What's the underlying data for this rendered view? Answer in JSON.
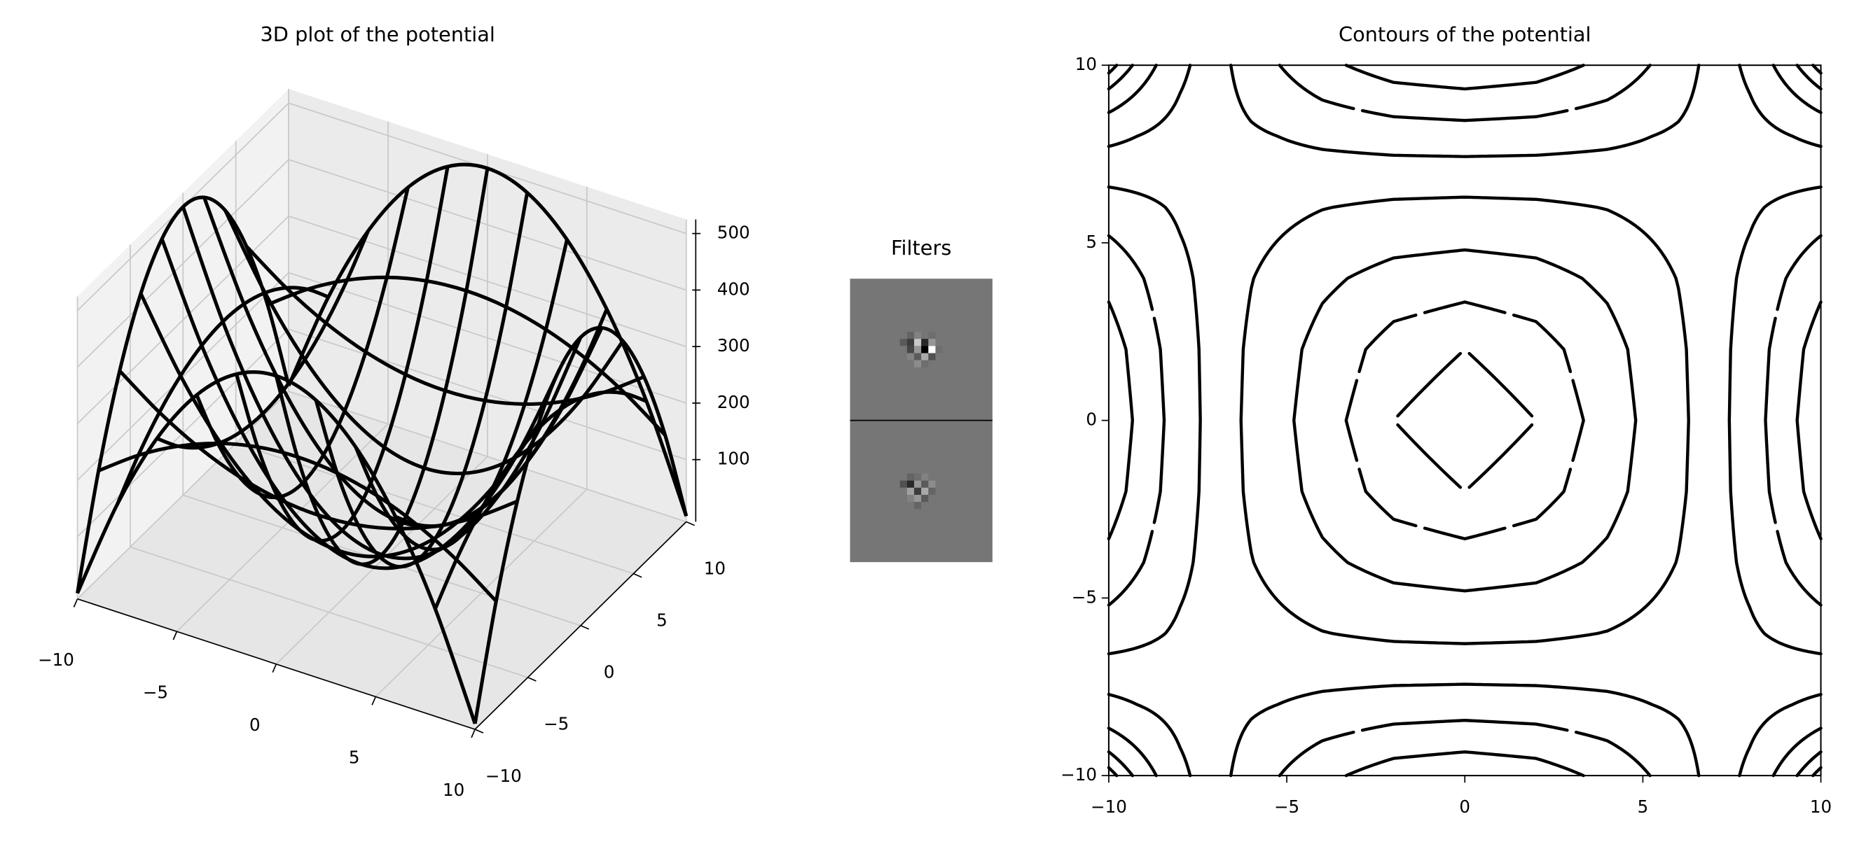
{
  "chart_data": [
    {
      "type": "wireframe",
      "title": "3D plot of the potential",
      "color": "#000000",
      "x": [
        -10,
        -8,
        -6,
        -4,
        -2,
        0,
        2,
        4,
        6,
        8,
        10
      ],
      "y": [
        -10,
        -8,
        -6,
        -4,
        -2,
        0,
        2,
        4,
        6,
        8,
        10
      ],
      "z": [
        [
          0,
          180,
          320,
          420,
          480,
          500,
          480,
          420,
          320,
          180,
          0
        ],
        [
          180,
          230.4,
          269.6,
          297.6,
          314.4,
          320,
          314.4,
          297.6,
          269.6,
          230.4,
          180
        ],
        [
          320,
          269.6,
          230.4,
          202.4,
          185.6,
          180,
          185.6,
          202.4,
          230.4,
          269.6,
          320
        ],
        [
          420,
          297.6,
          202.4,
          134.4,
          93.6,
          80,
          93.6,
          134.4,
          202.4,
          297.6,
          420
        ],
        [
          480,
          314.4,
          185.6,
          93.6,
          38.4,
          20,
          38.4,
          93.6,
          185.6,
          314.4,
          480
        ],
        [
          500,
          320,
          180,
          80,
          20,
          0,
          20,
          80,
          180,
          320,
          500
        ],
        [
          480,
          314.4,
          185.6,
          93.6,
          38.4,
          20,
          38.4,
          93.6,
          185.6,
          314.4,
          480
        ],
        [
          420,
          297.6,
          202.4,
          134.4,
          93.6,
          80,
          93.6,
          134.4,
          202.4,
          297.6,
          420
        ],
        [
          320,
          269.6,
          230.4,
          202.4,
          185.6,
          180,
          185.6,
          202.4,
          230.4,
          269.6,
          320
        ],
        [
          180,
          230.4,
          269.6,
          297.6,
          314.4,
          320,
          314.4,
          297.6,
          269.6,
          230.4,
          180
        ],
        [
          0,
          180,
          320,
          420,
          480,
          500,
          480,
          420,
          320,
          180,
          0
        ]
      ],
      "xlim": [
        -10,
        10
      ],
      "ylim": [
        -10,
        10
      ],
      "zlim": [
        -10,
        525
      ],
      "xticks": [
        {
          "value": -10,
          "label": "−10"
        },
        {
          "value": -5,
          "label": "−5"
        },
        0,
        5,
        10
      ],
      "yticks": [
        {
          "value": -10,
          "label": "−10"
        },
        {
          "value": -5,
          "label": "−5"
        },
        0,
        5,
        10
      ],
      "zticks": [
        100,
        200,
        300,
        400,
        500
      ],
      "grid": true
    },
    {
      "type": "image",
      "title": "Filters",
      "background": 118,
      "images": [
        [
          [
            118,
            100,
            130,
            118,
            110,
            118
          ],
          [
            90,
            60,
            200,
            40,
            150,
            118
          ],
          [
            118,
            70,
            150,
            0,
            255,
            110
          ],
          [
            118,
            130,
            90,
            170,
            80,
            118
          ],
          [
            118,
            118,
            140,
            110,
            118,
            118
          ]
        ],
        [
          [
            118,
            100,
            110,
            130,
            118,
            118
          ],
          [
            80,
            40,
            150,
            90,
            140,
            118
          ],
          [
            118,
            160,
            60,
            170,
            100,
            118
          ],
          [
            118,
            130,
            150,
            90,
            118,
            118
          ],
          [
            118,
            118,
            100,
            118,
            118,
            118
          ]
        ]
      ]
    },
    {
      "type": "contour",
      "title": "Contours of the potential",
      "color": "#000000",
      "levels": [
        20,
        60,
        120,
        200,
        280,
        360,
        440
      ],
      "xlim": [
        -10,
        10
      ],
      "ylim": [
        -10,
        10
      ],
      "xticks": [
        {
          "value": -10,
          "label": "−10"
        },
        {
          "value": -5,
          "label": "−5"
        },
        0,
        5,
        10
      ],
      "yticks": [
        {
          "value": -10,
          "label": "−10"
        },
        {
          "value": -5,
          "label": "−5"
        },
        0,
        5,
        10
      ]
    }
  ]
}
